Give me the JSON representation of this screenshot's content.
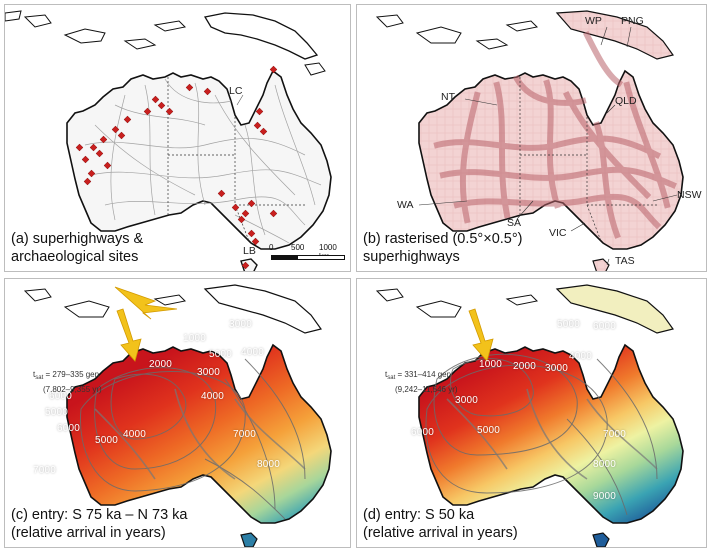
{
  "panels": {
    "a": {
      "caption_line1": "(a) superhighways &",
      "caption_line2": "archaeological sites",
      "labels": {
        "lc": "LC",
        "lb": "LB"
      },
      "scale": {
        "t0": "0",
        "t1": "500",
        "t2": "1000 km"
      }
    },
    "b": {
      "caption_line1": "(b) rasterised (0.5°×0.5°)",
      "caption_line2": "superhighways",
      "labels": {
        "wp": "WP",
        "png": "PNG",
        "nt": "NT",
        "qld": "QLD",
        "wa": "WA",
        "sa": "SA",
        "nsw": "NSW",
        "vic": "VIC",
        "tas": "TAS"
      }
    },
    "c": {
      "caption_line1": "(c) entry: S 75 ka – N 73 ka",
      "caption_line2": "(relative arrival in years)",
      "tsat_line1_prefix": "t",
      "tsat_sub": "sat",
      "tsat_line1_rest": " = 279–335 gen",
      "tsat_line2": "(7,802–9,355 yr)",
      "contours": [
        "1000",
        "2000",
        "3000",
        "4000",
        "5000",
        "6000",
        "7000",
        "8000",
        "3000",
        "4000",
        "5000",
        "6000",
        "5000",
        "4000",
        "7000"
      ]
    },
    "d": {
      "caption_line1": "(d) entry: S 50 ka",
      "caption_line2": "(relative arrival in years)",
      "tsat_line1_prefix": "t",
      "tsat_sub": "sat",
      "tsat_line1_rest": " = 331–414 gen",
      "tsat_line2": "(9,242–11,546 yr)",
      "contours": [
        "1000",
        "2000",
        "3000",
        "4000",
        "5000",
        "6000",
        "7000",
        "8000",
        "9000",
        "3000",
        "5000",
        "6000"
      ]
    }
  },
  "colors": {
    "site_marker": "#c8201f",
    "arrow": "#f2c21b",
    "raster_light": "#f3d3d3",
    "raster_dark": "#b9636b"
  }
}
